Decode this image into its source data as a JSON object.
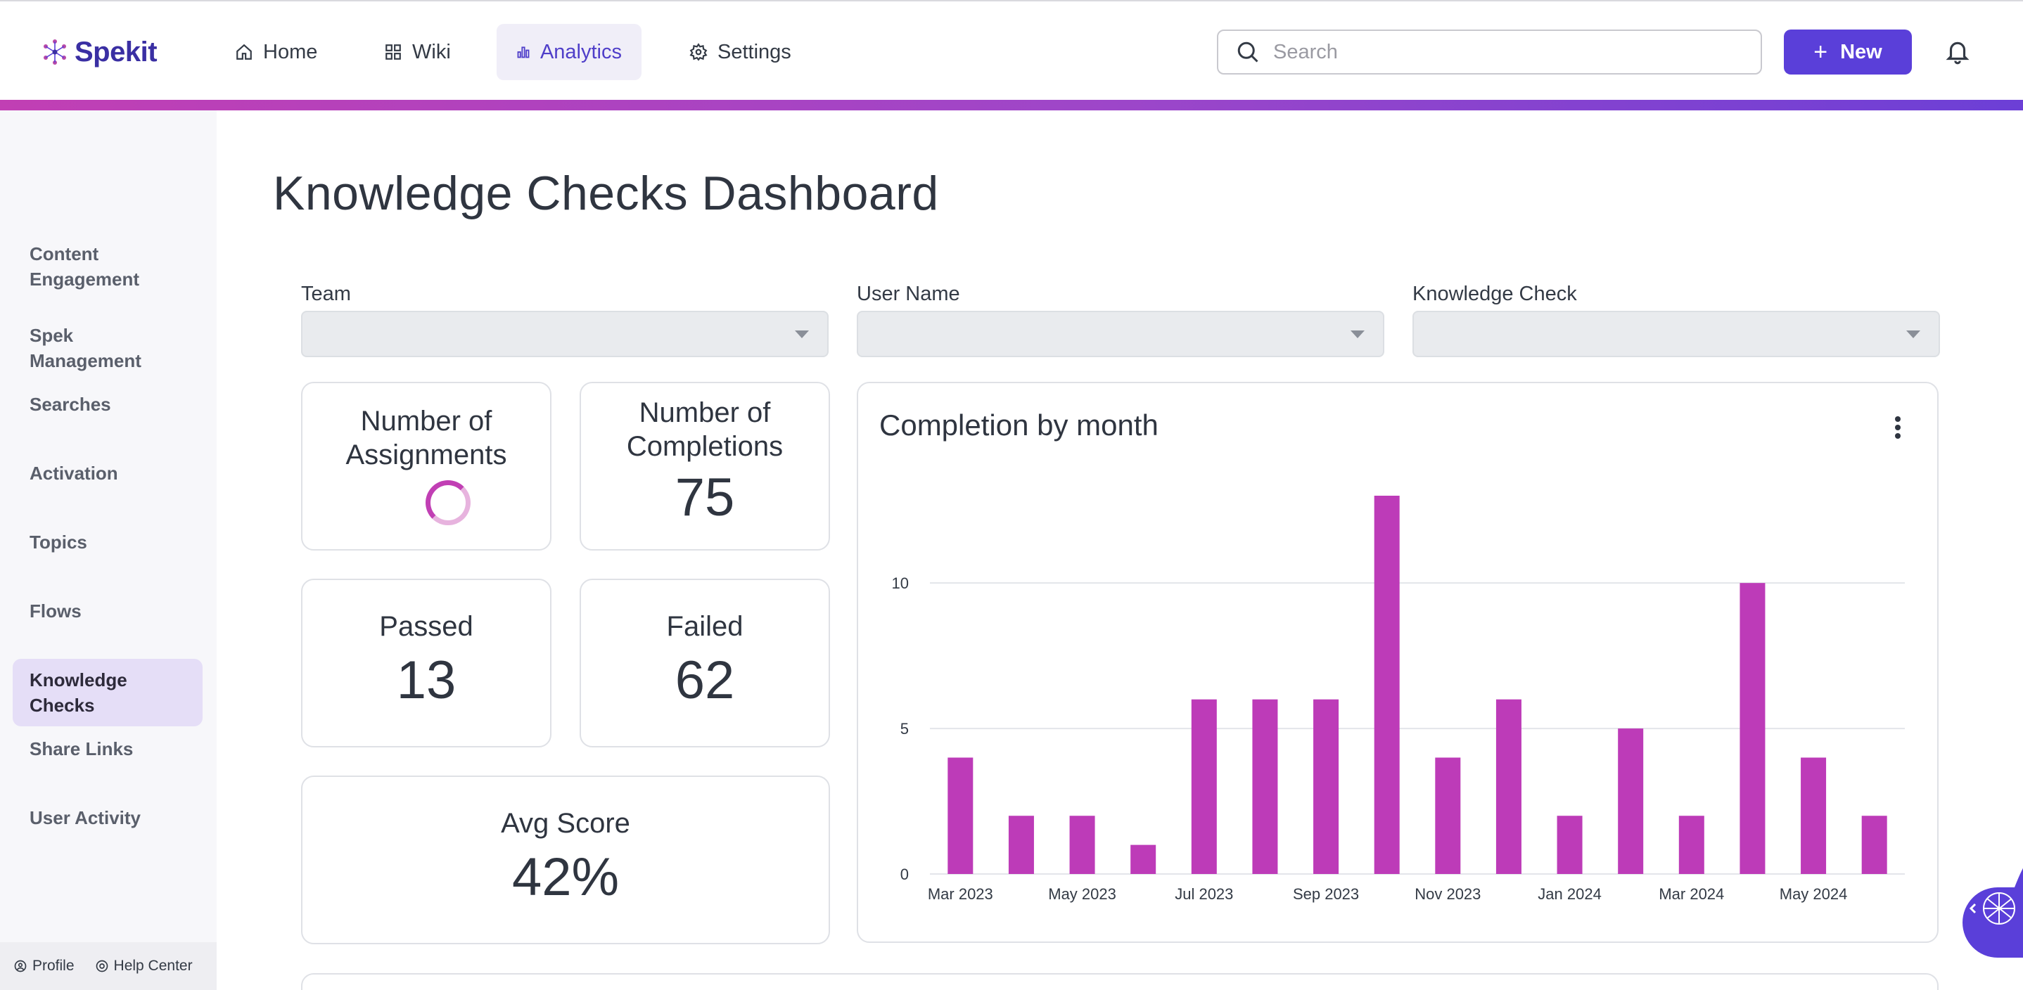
{
  "app": {
    "brand": "Spekit"
  },
  "nav": {
    "items": [
      {
        "label": "Home",
        "icon": "home-icon"
      },
      {
        "label": "Wiki",
        "icon": "grid-icon"
      },
      {
        "label": "Analytics",
        "icon": "bar-chart-icon",
        "active": true
      },
      {
        "label": "Settings",
        "icon": "gear-icon"
      }
    ]
  },
  "search": {
    "placeholder": "Search",
    "value": ""
  },
  "actions": {
    "new_label": "New"
  },
  "colors": {
    "accent": "#5a3fd9",
    "bar": "#bd3bb8",
    "active_nav_bg": "#f0eef8",
    "active_side_bg": "#e5def7"
  },
  "sidebar": {
    "items": [
      {
        "label": "Content Engagement"
      },
      {
        "label": "Spek Management"
      },
      {
        "label": "Searches"
      },
      {
        "label": "Activation"
      },
      {
        "label": "Topics"
      },
      {
        "label": "Flows"
      },
      {
        "label": "Knowledge Checks",
        "active": true
      },
      {
        "label": "Share Links"
      },
      {
        "label": "User Activity"
      }
    ],
    "footer": {
      "profile": "Profile",
      "help": "Help Center"
    }
  },
  "page": {
    "title": "Knowledge Checks Dashboard"
  },
  "filters": [
    {
      "label": "Team",
      "value": ""
    },
    {
      "label": "User Name",
      "value": ""
    },
    {
      "label": "Knowledge Check",
      "value": ""
    }
  ],
  "metrics": {
    "assignments": {
      "label": "Number of Assignments",
      "loading": true
    },
    "completions": {
      "label": "Number of Completions",
      "value": "75"
    },
    "passed": {
      "label": "Passed",
      "value": "13"
    },
    "failed": {
      "label": "Failed",
      "value": "62"
    },
    "avg_score": {
      "label": "Avg Score",
      "value": "42%"
    }
  },
  "chart_data": {
    "type": "bar",
    "title": "Completion by month",
    "categories": [
      "Mar 2023",
      "Apr 2023",
      "May 2023",
      "Jun 2023",
      "Jul 2023",
      "Aug 2023",
      "Sep 2023",
      "Oct 2023",
      "Nov 2023",
      "Dec 2023",
      "Jan 2024",
      "Feb 2024",
      "Mar 2024",
      "Apr 2024",
      "May 2024",
      "Jun 2024"
    ],
    "x_tick_labels": [
      "Mar 2023",
      "May 2023",
      "Jul 2023",
      "Sep 2023",
      "Nov 2023",
      "Jan 2024",
      "Mar 2024",
      "May 2024"
    ],
    "values": [
      4,
      2,
      2,
      1,
      6,
      6,
      6,
      13,
      4,
      6,
      2,
      5,
      2,
      10,
      4,
      2
    ],
    "y_ticks": [
      0,
      5,
      10
    ],
    "ylim": [
      0,
      13
    ],
    "grid": true,
    "xlabel": "",
    "ylabel": ""
  }
}
